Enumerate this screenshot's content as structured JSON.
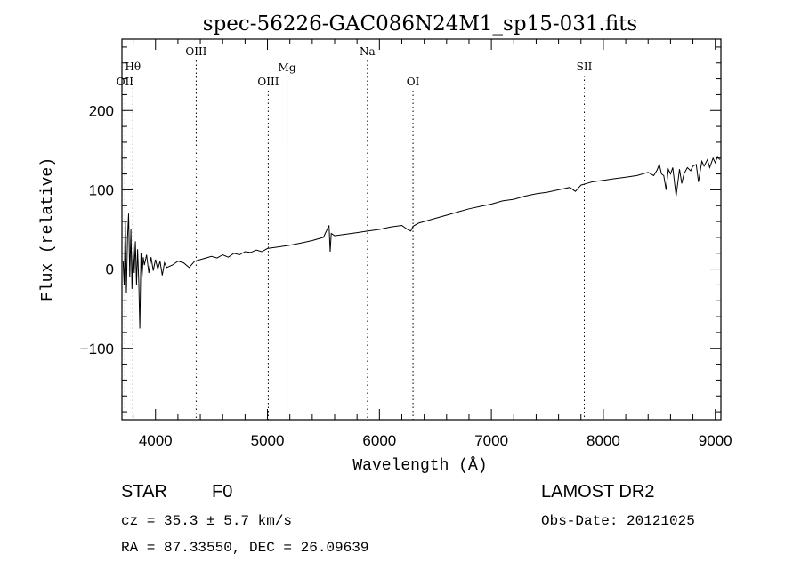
{
  "chart_data": {
    "type": "line",
    "title": "spec-56226-GAC086N24M1_sp15-031.fits",
    "xlabel": "Wavelength (Å)",
    "ylabel": "Flux (relative)",
    "xlim": [
      3700,
      9050
    ],
    "ylim": [
      -190,
      290
    ],
    "x_ticks": [
      4000,
      5000,
      6000,
      7000,
      8000,
      9000
    ],
    "x_tick_labels": [
      "4000",
      "5000",
      "6000",
      "7000",
      "8000",
      "9000"
    ],
    "y_ticks": [
      -100,
      0,
      100,
      200
    ],
    "y_tick_labels": [
      "−100",
      "0",
      "100",
      "200"
    ],
    "line_markers": [
      {
        "label": "OII",
        "wavelength": 3727
      },
      {
        "label": "Hθ",
        "wavelength": 3798
      },
      {
        "label": "OIII",
        "wavelength": 4363
      },
      {
        "label": "OIII",
        "wavelength": 5007
      },
      {
        "label": "Mg",
        "wavelength": 5175
      },
      {
        "label": "Na",
        "wavelength": 5893
      },
      {
        "label": "OI",
        "wavelength": 6300
      },
      {
        "label": "SII",
        "wavelength": 7830
      }
    ],
    "series": [
      {
        "x": [
          3710,
          3720,
          3730,
          3740,
          3750,
          3760,
          3770,
          3780,
          3790,
          3800,
          3810,
          3820,
          3830,
          3840,
          3850,
          3860,
          3870,
          3880,
          3890,
          3900,
          3920,
          3940,
          3960,
          3980,
          4000,
          4020,
          4040,
          4060,
          4080,
          4100,
          4150,
          4200,
          4250,
          4300,
          4350,
          4400,
          4450,
          4500,
          4550,
          4600,
          4650,
          4700,
          4750,
          4800,
          4850,
          4900,
          4950,
          5000,
          5100,
          5200,
          5300,
          5400,
          5500,
          5550,
          5560,
          5570,
          5600,
          5700,
          5800,
          5900,
          6000,
          6100,
          6200,
          6250,
          6280,
          6300,
          6350,
          6400,
          6500,
          6600,
          6700,
          6800,
          6900,
          7000,
          7100,
          7200,
          7300,
          7400,
          7500,
          7600,
          7700,
          7750,
          7800,
          7850,
          7900,
          8000,
          8100,
          8200,
          8300,
          8400,
          8450,
          8480,
          8500,
          8520,
          8540,
          8560,
          8580,
          8600,
          8620,
          8650,
          8680,
          8700,
          8720,
          8750,
          8780,
          8800,
          8830,
          8850,
          8880,
          8900,
          8930,
          8950,
          8980,
          9000,
          9020,
          9040
        ],
        "y": [
          10,
          -20,
          60,
          -30,
          40,
          70,
          -10,
          50,
          -25,
          30,
          -5,
          35,
          -20,
          25,
          -15,
          -75,
          20,
          -10,
          15,
          5,
          18,
          -5,
          15,
          -2,
          12,
          0,
          10,
          -8,
          8,
          2,
          5,
          10,
          8,
          2,
          10,
          12,
          14,
          16,
          14,
          18,
          15,
          20,
          18,
          22,
          21,
          24,
          22,
          26,
          28,
          30,
          33,
          36,
          40,
          55,
          22,
          45,
          42,
          44,
          46,
          48,
          50,
          53,
          55,
          50,
          48,
          54,
          58,
          60,
          64,
          68,
          72,
          76,
          79,
          82,
          86,
          88,
          92,
          95,
          97,
          100,
          103,
          98,
          106,
          108,
          110,
          112,
          114,
          116,
          118,
          122,
          118,
          125,
          132,
          120,
          118,
          100,
          126,
          120,
          128,
          92,
          126,
          108,
          120,
          128,
          124,
          130,
          132,
          110,
          136,
          130,
          138,
          128,
          140,
          134,
          142,
          138
        ]
      }
    ]
  },
  "footer": {
    "object_class": "STAR",
    "subclass": "F0",
    "survey": "LAMOST DR2",
    "cz_text": "cz = 35.3 ± 5.7 km/s",
    "obs_date": "Obs-Date: 20121025",
    "radec_text": "RA =  87.33550, DEC =  26.09639"
  }
}
